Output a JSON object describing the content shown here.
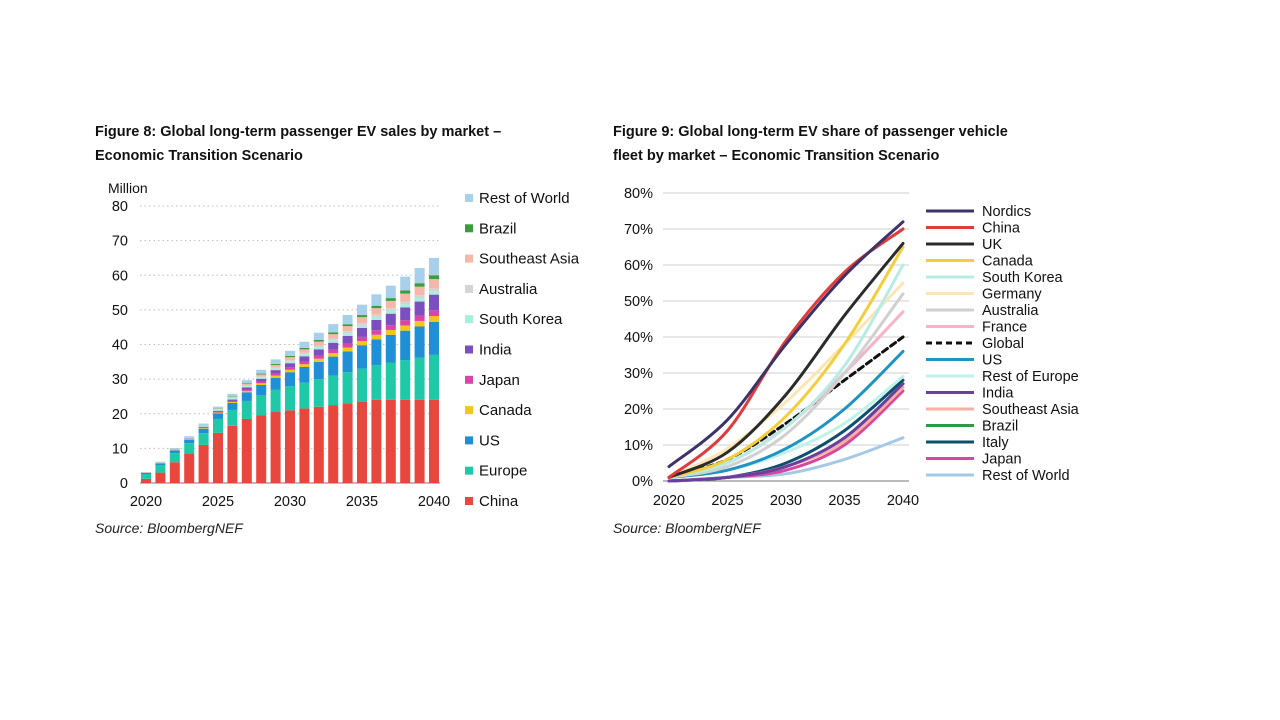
{
  "figures": [
    {
      "title": "Figure 8: Global long-term passenger EV sales by market –\nEconomic Transition Scenario",
      "source": "Source: BloombergNEF"
    },
    {
      "title": "Figure 9: Global long-term EV share of passenger vehicle\nfleet by market – Economic Transition Scenario",
      "source": "Source: BloombergNEF"
    }
  ],
  "chart_data": [
    {
      "type": "bar",
      "stacked": true,
      "ylabel": "Million",
      "ylim": [
        0,
        80
      ],
      "yticks": [
        0,
        10,
        20,
        30,
        40,
        50,
        60,
        70,
        80
      ],
      "x_tick_labels": [
        "2020",
        "2025",
        "2030",
        "2035",
        "2040"
      ],
      "categories": [
        2020,
        2021,
        2022,
        2023,
        2024,
        2025,
        2026,
        2027,
        2028,
        2029,
        2030,
        2031,
        2032,
        2033,
        2034,
        2035,
        2036,
        2037,
        2038,
        2039,
        2040
      ],
      "legend_position": "right",
      "series": [
        {
          "name": "China",
          "color": "#e8473e",
          "values": [
            1.2,
            3,
            6,
            8.5,
            11,
            14.5,
            16.5,
            18.5,
            19.5,
            20.5,
            21,
            21.5,
            22,
            22.5,
            23,
            23.5,
            24,
            24,
            24,
            24,
            24
          ]
        },
        {
          "name": "Europe",
          "color": "#1fc9a8",
          "values": [
            1.4,
            2.2,
            2.6,
            3,
            3.4,
            4,
            4.6,
            5.2,
            5.8,
            6.4,
            7,
            7.5,
            8,
            8.5,
            9,
            9.5,
            10,
            10.8,
            11.5,
            12.2,
            13
          ]
        },
        {
          "name": "US",
          "color": "#1f8fd6",
          "values": [
            0.3,
            0.5,
            0.8,
            1,
            1.3,
            1.6,
            2,
            2.5,
            3,
            3.5,
            4,
            4.5,
            5,
            5.5,
            6,
            6.8,
            7.5,
            8,
            8.5,
            9,
            9.5
          ]
        },
        {
          "name": "Canada",
          "color": "#f5c518",
          "values": [
            0.05,
            0.08,
            0.1,
            0.15,
            0.2,
            0.25,
            0.3,
            0.4,
            0.5,
            0.6,
            0.7,
            0.8,
            0.9,
            1,
            1.1,
            1.2,
            1.3,
            1.4,
            1.5,
            1.6,
            1.7
          ]
        },
        {
          "name": "Japan",
          "color": "#d946a8",
          "values": [
            0.05,
            0.05,
            0.1,
            0.1,
            0.15,
            0.2,
            0.3,
            0.4,
            0.5,
            0.6,
            0.7,
            0.8,
            0.9,
            1,
            1.1,
            1.2,
            1.3,
            1.4,
            1.5,
            1.6,
            1.7
          ]
        },
        {
          "name": "India",
          "color": "#7b4fbf",
          "values": [
            0.01,
            0.02,
            0.05,
            0.1,
            0.2,
            0.3,
            0.4,
            0.6,
            0.8,
            1,
            1.2,
            1.5,
            1.8,
            2,
            2.3,
            2.6,
            3,
            3.3,
            3.7,
            4,
            4.5
          ]
        },
        {
          "name": "South Korea",
          "color": "#a6efdc",
          "values": [
            0.05,
            0.1,
            0.15,
            0.2,
            0.25,
            0.3,
            0.35,
            0.4,
            0.45,
            0.5,
            0.55,
            0.6,
            0.65,
            0.7,
            0.75,
            0.8,
            0.85,
            0.9,
            0.95,
            1,
            1
          ]
        },
        {
          "name": "Australia",
          "color": "#d4d4d4",
          "values": [
            0.01,
            0.02,
            0.03,
            0.05,
            0.08,
            0.1,
            0.15,
            0.2,
            0.25,
            0.3,
            0.35,
            0.4,
            0.45,
            0.5,
            0.55,
            0.6,
            0.65,
            0.7,
            0.75,
            0.8,
            0.8
          ]
        },
        {
          "name": "Southeast Asia",
          "color": "#f6b7aa",
          "values": [
            0.01,
            0.02,
            0.05,
            0.08,
            0.12,
            0.2,
            0.3,
            0.4,
            0.55,
            0.7,
            0.85,
            1,
            1.15,
            1.3,
            1.5,
            1.7,
            1.9,
            2.1,
            2.3,
            2.5,
            2.7
          ]
        },
        {
          "name": "Brazil",
          "color": "#3a9c3a",
          "values": [
            0.01,
            0.02,
            0.03,
            0.05,
            0.08,
            0.1,
            0.15,
            0.2,
            0.25,
            0.3,
            0.35,
            0.4,
            0.45,
            0.5,
            0.55,
            0.6,
            0.7,
            0.8,
            0.9,
            1,
            1.1
          ]
        },
        {
          "name": "Rest of World",
          "color": "#a8d0ea",
          "values": [
            0.1,
            0.15,
            0.2,
            0.3,
            0.4,
            0.5,
            0.7,
            0.9,
            1.1,
            1.3,
            1.5,
            1.8,
            2.1,
            2.4,
            2.7,
            3,
            3.3,
            3.6,
            4,
            4.4,
            5
          ]
        }
      ]
    },
    {
      "type": "line",
      "ylim": [
        0,
        80
      ],
      "yticks": [
        0,
        10,
        20,
        30,
        40,
        50,
        60,
        70,
        80
      ],
      "ytick_labels": [
        "0%",
        "10%",
        "20%",
        "30%",
        "40%",
        "50%",
        "60%",
        "70%",
        "80%"
      ],
      "x": [
        2020,
        2025,
        2030,
        2035,
        2040
      ],
      "x_tick_labels": [
        "2020",
        "2025",
        "2030",
        "2035",
        "2040"
      ],
      "legend_position": "right",
      "series": [
        {
          "name": "Nordics",
          "color": "#3d3366",
          "values": [
            4,
            17,
            38,
            57,
            72
          ]
        },
        {
          "name": "China",
          "color": "#e03a3a",
          "values": [
            1,
            14,
            39,
            58,
            70
          ]
        },
        {
          "name": "UK",
          "color": "#2b2b2b",
          "values": [
            1,
            8,
            24,
            46,
            66
          ]
        },
        {
          "name": "Canada",
          "color": "#f2cf3a",
          "values": [
            1,
            6,
            18,
            38,
            65
          ]
        },
        {
          "name": "South Korea",
          "color": "#b6ece3",
          "values": [
            1,
            5,
            15,
            32,
            60
          ]
        },
        {
          "name": "Germany",
          "color": "#fbe6b4",
          "values": [
            1,
            9,
            22,
            38,
            55
          ]
        },
        {
          "name": "Australia",
          "color": "#d0d0d0",
          "values": [
            1,
            4,
            13,
            30,
            52
          ]
        },
        {
          "name": "France",
          "color": "#f7b3c9",
          "values": [
            1,
            5,
            15,
            30,
            47
          ]
        },
        {
          "name": "Global",
          "color": "#111111",
          "dashed": true,
          "values": [
            1,
            6,
            16,
            28,
            40
          ]
        },
        {
          "name": "US",
          "color": "#1f93c2",
          "values": [
            1,
            3,
            9,
            20,
            36
          ]
        },
        {
          "name": "Rest of Europe",
          "color": "#bff2e8",
          "values": [
            1,
            3,
            8,
            16,
            29
          ]
        },
        {
          "name": "India",
          "color": "#6a3fa0",
          "values": [
            0,
            1,
            4,
            12,
            27
          ]
        },
        {
          "name": "Southeast Asia",
          "color": "#f5b0a4",
          "values": [
            0,
            1,
            4,
            11,
            26
          ]
        },
        {
          "name": "Brazil",
          "color": "#2e9a45",
          "values": [
            0,
            1,
            4,
            12,
            27
          ]
        },
        {
          "name": "Italy",
          "color": "#0e4f6b",
          "values": [
            0,
            1,
            5,
            14,
            28
          ]
        },
        {
          "name": "Japan",
          "color": "#d8479e",
          "values": [
            0,
            1,
            3,
            10,
            25
          ]
        },
        {
          "name": "Rest of World",
          "color": "#a3c9e6",
          "values": [
            0,
            1,
            2,
            6,
            12
          ]
        }
      ]
    }
  ]
}
